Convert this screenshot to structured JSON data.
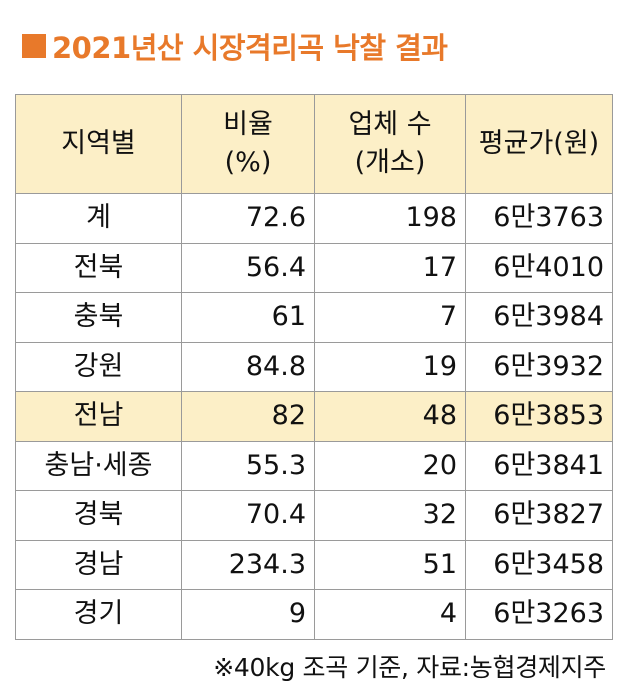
{
  "title": "■2021년산 시장격리곡 낙찰 결과",
  "colors": {
    "accent": "#e8792a",
    "header_bg": "#fcefc7",
    "highlight_bg": "#fcefc7",
    "border": "#9a9a9a"
  },
  "table": {
    "headers": [
      {
        "line1": "지역별",
        "line2": ""
      },
      {
        "line1": "비율",
        "line2": "(%)"
      },
      {
        "line1": "업체 수",
        "line2": "(개소)"
      },
      {
        "line1": "평균가(원)",
        "line2": ""
      }
    ],
    "rows": [
      {
        "region": "계",
        "ratio": "72.6",
        "count": "198",
        "price": "6만3763",
        "highlight": false
      },
      {
        "region": "전북",
        "ratio": "56.4",
        "count": "17",
        "price": "6만4010",
        "highlight": false
      },
      {
        "region": "충북",
        "ratio": "61",
        "count": "7",
        "price": "6만3984",
        "highlight": false
      },
      {
        "region": "강원",
        "ratio": "84.8",
        "count": "19",
        "price": "6만3932",
        "highlight": false
      },
      {
        "region": "전남",
        "ratio": "82",
        "count": "48",
        "price": "6만3853",
        "highlight": true
      },
      {
        "region": "충남·세종",
        "ratio": "55.3",
        "count": "20",
        "price": "6만3841",
        "highlight": false
      },
      {
        "region": "경북",
        "ratio": "70.4",
        "count": "32",
        "price": "6만3827",
        "highlight": false
      },
      {
        "region": "경남",
        "ratio": "234.3",
        "count": "51",
        "price": "6만3458",
        "highlight": false
      },
      {
        "region": "경기",
        "ratio": "9",
        "count": "4",
        "price": "6만3263",
        "highlight": false
      }
    ]
  },
  "footnote": "※40kg 조곡 기준, 자료:농협경제지주"
}
